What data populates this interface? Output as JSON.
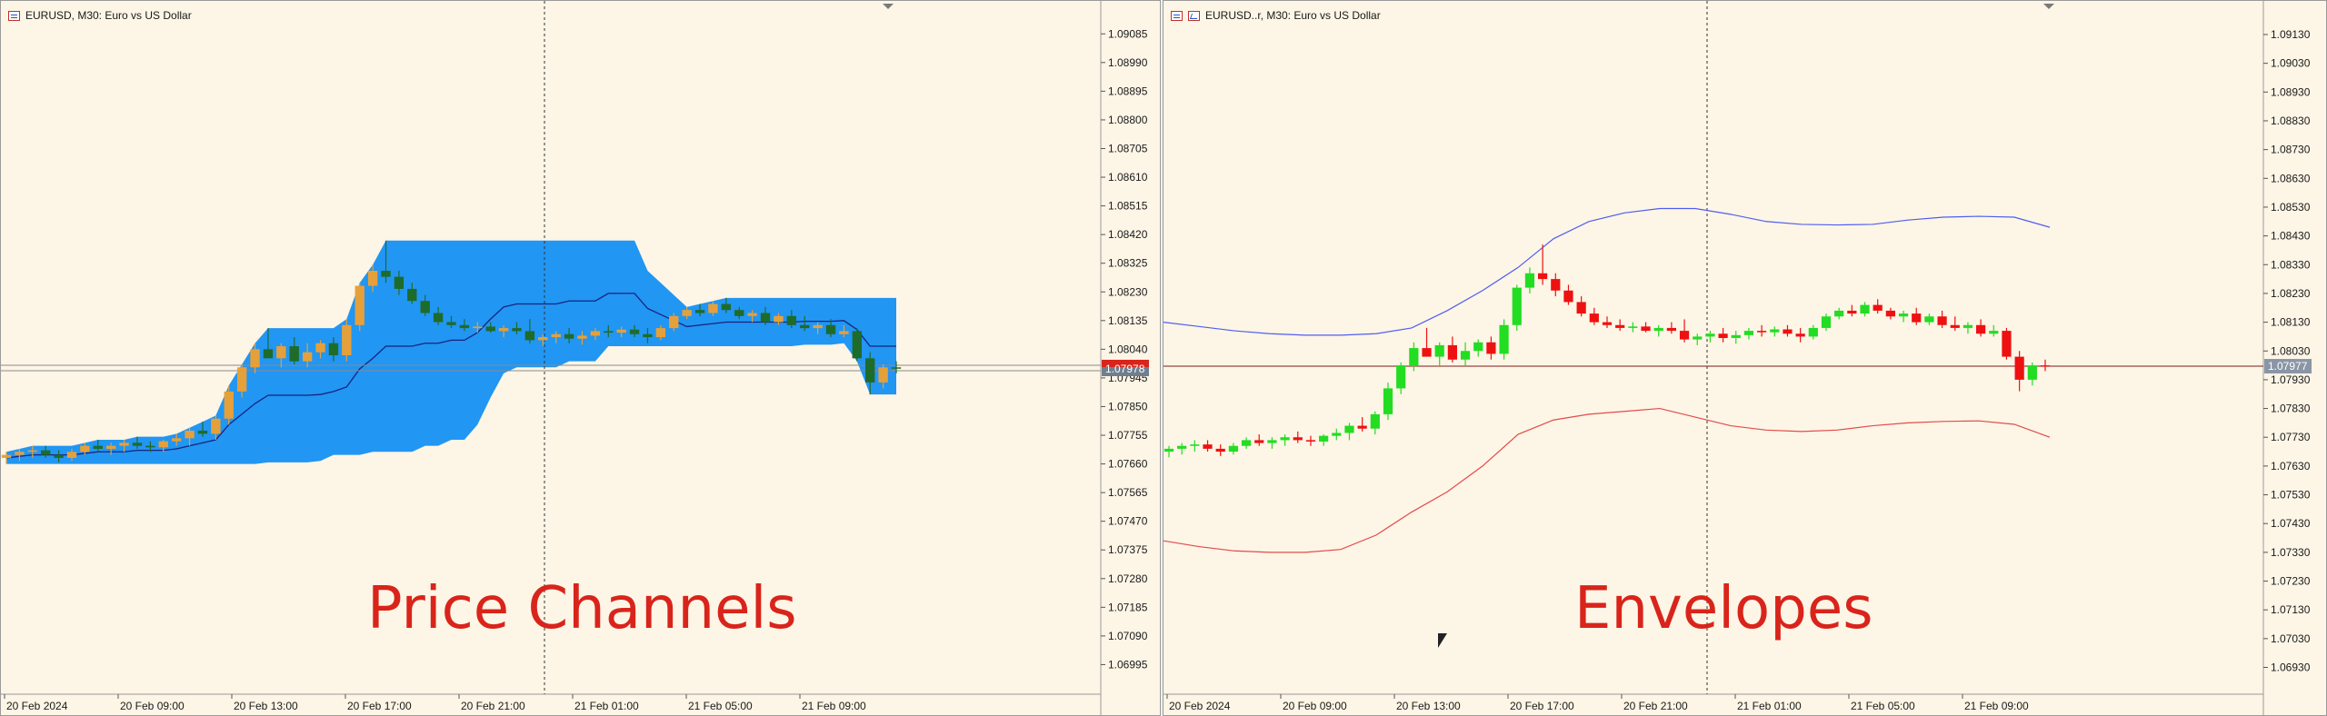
{
  "left_chart": {
    "header": "EURUSD, M30:  Euro vs US Dollar",
    "overlay_title": "Price Channels",
    "current_price": "1.07978",
    "colors": {
      "channel_fill": "#2196f3",
      "channel_line": "#1a237e",
      "bull": "#e6a03a",
      "bear": "#1f6b2a",
      "background": "#fdf5e6",
      "axis_text": "#1a1a1a"
    }
  },
  "right_chart": {
    "header": "EURUSD..r, M30:  Euro vs US Dollar",
    "overlay_title": "Envelopes",
    "current_price": "1.07977",
    "colors": {
      "upper_band": "#4f5ef0",
      "lower_band": "#e24b4b",
      "bull": "#22dd22",
      "bear": "#ee1111",
      "price_line": "#7a1a1a",
      "background": "#fdf5e6"
    }
  },
  "chart_data": [
    {
      "type": "candlestick",
      "title": "EURUSD, M30:  Euro vs US Dollar",
      "indicator": "Price Channels",
      "ylim": [
        1.069,
        1.0914
      ],
      "y_ticks": [
        "1.09085",
        "1.08990",
        "1.08895",
        "1.08800",
        "1.08705",
        "1.08610",
        "1.08515",
        "1.08420",
        "1.08325",
        "1.08230",
        "1.08135",
        "1.08040",
        "1.07945",
        "1.07850",
        "1.07755",
        "1.07660",
        "1.07565",
        "1.07470",
        "1.07375",
        "1.07280",
        "1.07185",
        "1.07090",
        "1.06995"
      ],
      "x_ticks": [
        "20 Feb 2024",
        "20 Feb 09:00",
        "20 Feb 13:00",
        "20 Feb 17:00",
        "20 Feb 21:00",
        "21 Feb 01:00",
        "21 Feb 05:00",
        "21 Feb 09:00"
      ],
      "current_price": 1.07978,
      "candles": [
        [
          1.0768,
          1.077,
          1.0766,
          1.0769
        ],
        [
          1.0769,
          1.0771,
          1.0767,
          1.077
        ],
        [
          1.077,
          1.0772,
          1.0768,
          1.07705
        ],
        [
          1.07705,
          1.0772,
          1.0768,
          1.0769
        ],
        [
          1.0769,
          1.07705,
          1.07665,
          1.0768
        ],
        [
          1.0768,
          1.0771,
          1.0767,
          1.077
        ],
        [
          1.077,
          1.0773,
          1.0769,
          1.0772
        ],
        [
          1.0772,
          1.0774,
          1.077,
          1.0771
        ],
        [
          1.0771,
          1.0773,
          1.0769,
          1.0772
        ],
        [
          1.0772,
          1.0774,
          1.077,
          1.0773
        ],
        [
          1.0773,
          1.0775,
          1.0771,
          1.0772
        ],
        [
          1.0772,
          1.07735,
          1.077,
          1.07715
        ],
        [
          1.07715,
          1.0774,
          1.077,
          1.07735
        ],
        [
          1.07735,
          1.0776,
          1.0772,
          1.07745
        ],
        [
          1.07745,
          1.0778,
          1.0772,
          1.0777
        ],
        [
          1.0777,
          1.078,
          1.0775,
          1.0776
        ],
        [
          1.0776,
          1.0782,
          1.0774,
          1.0781
        ],
        [
          1.0781,
          1.0792,
          1.0779,
          1.079
        ],
        [
          1.079,
          1.0799,
          1.0788,
          1.0798
        ],
        [
          1.0798,
          1.0806,
          1.0796,
          1.0804
        ],
        [
          1.0804,
          1.0811,
          1.0802,
          1.0801
        ],
        [
          1.0801,
          1.0806,
          1.0798,
          1.0805
        ],
        [
          1.0805,
          1.0808,
          1.0799,
          1.08
        ],
        [
          1.08,
          1.0806,
          1.0798,
          1.0803
        ],
        [
          1.0803,
          1.0807,
          1.0801,
          1.0806
        ],
        [
          1.0806,
          1.0808,
          1.08,
          1.0802
        ],
        [
          1.0802,
          1.0814,
          1.08,
          1.0812
        ],
        [
          1.0812,
          1.0826,
          1.081,
          1.0825
        ],
        [
          1.0825,
          1.0832,
          1.0823,
          1.083
        ],
        [
          1.083,
          1.084,
          1.0826,
          1.0828
        ],
        [
          1.0828,
          1.083,
          1.0822,
          1.0824
        ],
        [
          1.0824,
          1.0826,
          1.0819,
          1.082
        ],
        [
          1.082,
          1.0822,
          1.0815,
          1.0816
        ],
        [
          1.0816,
          1.0818,
          1.0812,
          1.0813
        ],
        [
          1.0813,
          1.0815,
          1.0811,
          1.0812
        ],
        [
          1.0812,
          1.0814,
          1.081,
          1.0811
        ],
        [
          1.0811,
          1.0813,
          1.08095,
          1.08115
        ],
        [
          1.08115,
          1.0813,
          1.08095,
          1.081
        ],
        [
          1.081,
          1.0812,
          1.0808,
          1.0811
        ],
        [
          1.0811,
          1.0813,
          1.0809,
          1.081
        ],
        [
          1.081,
          1.0814,
          1.0806,
          1.0807
        ],
        [
          1.0807,
          1.0809,
          1.0805,
          1.0808
        ],
        [
          1.0808,
          1.081,
          1.0806,
          1.0809
        ],
        [
          1.0809,
          1.0811,
          1.0806,
          1.08075
        ],
        [
          1.08075,
          1.081,
          1.08055,
          1.08085
        ],
        [
          1.08085,
          1.0811,
          1.0807,
          1.081
        ],
        [
          1.081,
          1.0812,
          1.0808,
          1.08095
        ],
        [
          1.08095,
          1.08115,
          1.0808,
          1.08105
        ],
        [
          1.08105,
          1.0812,
          1.0808,
          1.0809
        ],
        [
          1.0809,
          1.0811,
          1.0806,
          1.0808
        ],
        [
          1.0808,
          1.0812,
          1.0807,
          1.0811
        ],
        [
          1.0811,
          1.0816,
          1.081,
          1.0815
        ],
        [
          1.0815,
          1.0818,
          1.0814,
          1.0817
        ],
        [
          1.0817,
          1.0819,
          1.0815,
          1.0816
        ],
        [
          1.0816,
          1.082,
          1.0815,
          1.0819
        ],
        [
          1.0819,
          1.0821,
          1.0816,
          1.0817
        ],
        [
          1.0817,
          1.0818,
          1.0814,
          1.0815
        ],
        [
          1.0815,
          1.0817,
          1.0813,
          1.0816
        ],
        [
          1.0816,
          1.0818,
          1.0812,
          1.0813
        ],
        [
          1.0813,
          1.0816,
          1.0812,
          1.0815
        ],
        [
          1.0815,
          1.0817,
          1.0811,
          1.0812
        ],
        [
          1.0812,
          1.0815,
          1.081,
          1.0811
        ],
        [
          1.0811,
          1.0813,
          1.0809,
          1.0812
        ],
        [
          1.0812,
          1.0814,
          1.0808,
          1.0809
        ],
        [
          1.0809,
          1.0812,
          1.0808,
          1.081
        ],
        [
          1.081,
          1.0811,
          1.08,
          1.0801
        ],
        [
          1.0801,
          1.0803,
          1.0789,
          1.0793
        ],
        [
          1.0793,
          1.0799,
          1.0791,
          1.0798
        ],
        [
          1.0798,
          1.08,
          1.0796,
          1.07978
        ]
      ]
    },
    {
      "type": "candlestick",
      "title": "EURUSD..r, M30:  Euro vs US Dollar",
      "indicator": "Envelopes",
      "ylim": [
        1.0684,
        1.0919
      ],
      "y_ticks": [
        "1.09130",
        "1.09030",
        "1.08930",
        "1.08830",
        "1.08730",
        "1.08630",
        "1.08530",
        "1.08430",
        "1.08330",
        "1.08230",
        "1.08130",
        "1.08030",
        "1.07930",
        "1.07830",
        "1.07730",
        "1.07630",
        "1.07530",
        "1.07430",
        "1.07330",
        "1.07230",
        "1.07130",
        "1.07030",
        "1.06930"
      ],
      "x_ticks": [
        "20 Feb 2024",
        "20 Feb 09:00",
        "20 Feb 13:00",
        "20 Feb 17:00",
        "20 Feb 21:00",
        "21 Feb 01:00",
        "21 Feb 05:00",
        "21 Feb 09:00"
      ],
      "current_price": 1.07977,
      "series": [
        {
          "name": "Upper",
          "values": [
            1.0813,
            1.08115,
            1.081,
            1.0809,
            1.08085,
            1.08085,
            1.0809,
            1.0811,
            1.0817,
            1.0824,
            1.0832,
            1.0842,
            1.0848,
            1.0851,
            1.08525,
            1.08525,
            1.08505,
            1.0848,
            1.0847,
            1.08468,
            1.0847,
            1.08485,
            1.08495,
            1.08498,
            1.08495,
            1.0846
          ]
        },
        {
          "name": "Lower",
          "values": [
            1.0737,
            1.0735,
            1.07335,
            1.0733,
            1.0733,
            1.0734,
            1.0739,
            1.0747,
            1.0754,
            1.0763,
            1.0774,
            1.0779,
            1.0781,
            1.0782,
            1.0783,
            1.078,
            1.0777,
            1.07755,
            1.0775,
            1.07755,
            1.0777,
            1.0778,
            1.07785,
            1.07787,
            1.07775,
            1.0773
          ]
        }
      ]
    }
  ]
}
